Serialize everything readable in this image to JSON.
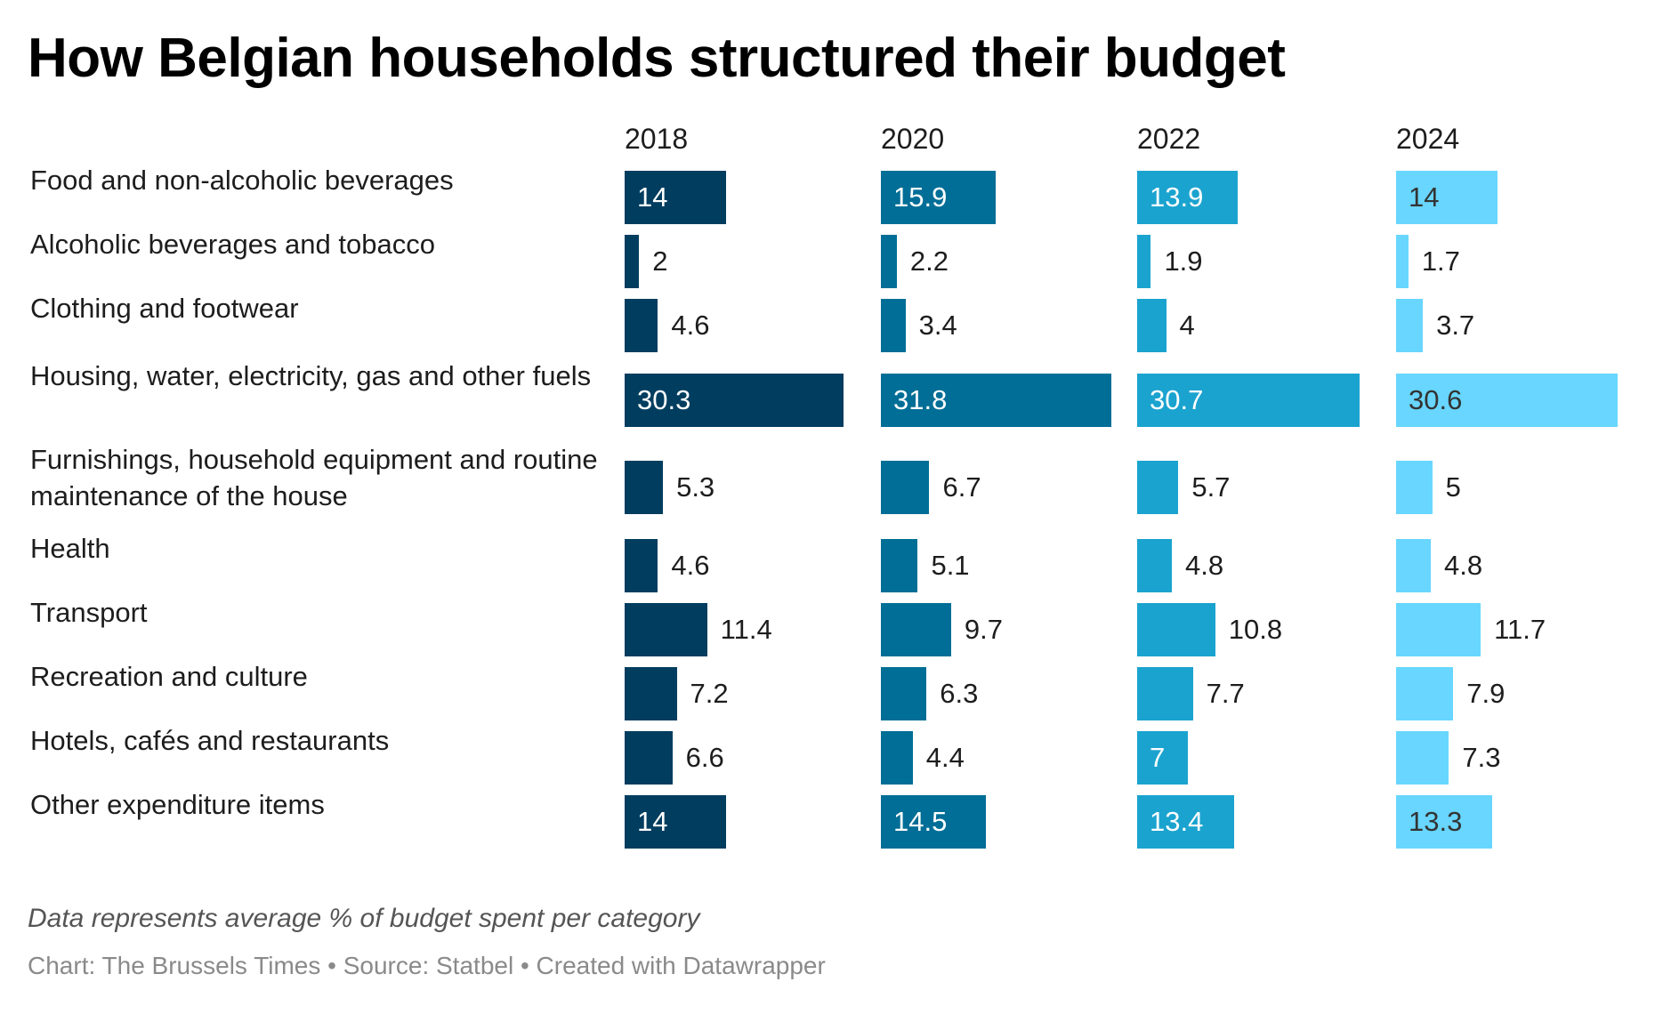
{
  "chart_data": {
    "type": "bar",
    "title": "How Belgian households structured their budget",
    "orientation": "horizontal",
    "layout": "small-multiples-columns",
    "xlabel": "",
    "ylabel": "",
    "unit": "% of budget",
    "grid": false,
    "legend": "none (column headers)",
    "categories": [
      "Food and non-alcoholic beverages",
      "Alcoholic beverages and tobacco",
      "Clothing and footwear",
      "Housing, water, electricity, gas and other fuels",
      "Furnishings, household equipment and routine maintenance of the house",
      "Health",
      "Transport",
      "Recreation and culture",
      "Hotels, cafés and restaurants",
      "Other expenditure items"
    ],
    "series": [
      {
        "name": "2018",
        "color": "#003d5f",
        "label_color_inside": "#ffffff",
        "values": [
          14,
          2,
          4.6,
          30.3,
          5.3,
          4.6,
          11.4,
          7.2,
          6.6,
          14
        ],
        "labels": [
          "14",
          "2",
          "4.6",
          "30.3",
          "5.3",
          "4.6",
          "11.4",
          "7.2",
          "6.6",
          "14"
        ],
        "label_inside": [
          true,
          false,
          false,
          true,
          false,
          false,
          false,
          false,
          false,
          true
        ]
      },
      {
        "name": "2020",
        "color": "#006e96",
        "label_color_inside": "#ffffff",
        "values": [
          15.9,
          2.2,
          3.4,
          31.8,
          6.7,
          5.1,
          9.7,
          6.3,
          4.4,
          14.5
        ],
        "labels": [
          "15.9",
          "2.2",
          "3.4",
          "31.8",
          "6.7",
          "5.1",
          "9.7",
          "6.3",
          "4.4",
          "14.5"
        ],
        "label_inside": [
          true,
          false,
          false,
          true,
          false,
          false,
          false,
          false,
          false,
          true
        ]
      },
      {
        "name": "2022",
        "color": "#1ba3cf",
        "label_color_inside": "#ffffff",
        "values": [
          13.9,
          1.9,
          4,
          30.7,
          5.7,
          4.8,
          10.8,
          7.7,
          7,
          13.4
        ],
        "labels": [
          "13.9",
          "1.9",
          "4",
          "30.7",
          "5.7",
          "4.8",
          "10.8",
          "7.7",
          "7",
          "13.4"
        ],
        "label_inside": [
          true,
          false,
          false,
          true,
          false,
          false,
          false,
          false,
          true,
          true
        ]
      },
      {
        "name": "2024",
        "color": "#68d6ff",
        "label_color_inside": "#333333",
        "values": [
          14,
          1.7,
          3.7,
          30.6,
          5,
          4.8,
          11.7,
          7.9,
          7.3,
          13.3
        ],
        "labels": [
          "14",
          "1.7",
          "3.7",
          "30.6",
          "5",
          "4.8",
          "11.7",
          "7.9",
          "7.3",
          "13.3"
        ],
        "label_inside": [
          true,
          false,
          false,
          true,
          false,
          false,
          false,
          false,
          false,
          true
        ]
      }
    ],
    "xlim": [
      0,
      31.8
    ],
    "notes": "Data represents average % of budget spent per category",
    "source": "Chart: The Brussels Times • Source: Statbel • Created with Datawrapper"
  }
}
